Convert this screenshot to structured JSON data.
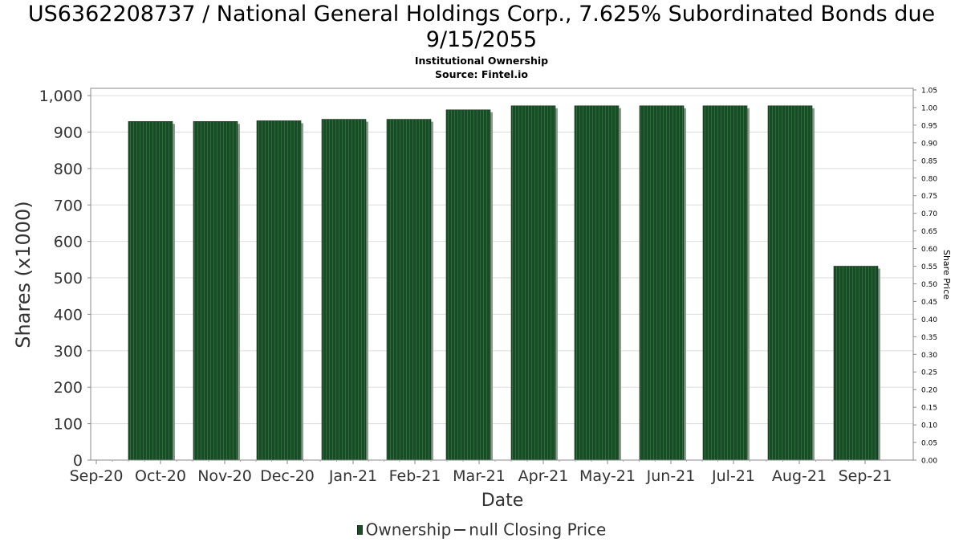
{
  "header": {
    "title_line1": "US6362208737 / National General Holdings Corp., 7.625% Subordinated Bonds due",
    "title_line2": "9/15/2055",
    "subtitle1": "Institutional Ownership",
    "subtitle2": "Source: Fintel.io"
  },
  "legend": {
    "ownership": "Ownership",
    "price": "null Closing Price"
  },
  "colors": {
    "bar": "#1a4a27",
    "bar_stripe": "#2f6b3c",
    "bar_shadow": "#8a9a8c",
    "grid": "#dddddd"
  },
  "chart_data": {
    "type": "bar",
    "xlabel": "Date",
    "ylabel": "Shares (x1000)",
    "y2label": "Share Price",
    "categories": [
      "Oct-20",
      "Nov-20",
      "Dec-20",
      "Jan-21",
      "Feb-21",
      "Mar-21",
      "Apr-21",
      "May-21",
      "Jun-21",
      "Jul-21",
      "Aug-21",
      "Sep-21"
    ],
    "x_ticks": [
      "Sep-20",
      "Oct-20",
      "Nov-20",
      "Dec-20",
      "Jan-21",
      "Feb-21",
      "Mar-21",
      "Apr-21",
      "May-21",
      "Jun-21",
      "Jul-21",
      "Aug-21",
      "Sep-21"
    ],
    "series": [
      {
        "name": "Ownership",
        "values": [
          929,
          929,
          931,
          935,
          935,
          961,
          972,
          972,
          972,
          972,
          972,
          532
        ]
      }
    ],
    "ylim": [
      0,
      1020
    ],
    "y_ticks": [
      "0",
      "100",
      "200",
      "300",
      "400",
      "500",
      "600",
      "700",
      "800",
      "900",
      "1,000"
    ],
    "y2lim": [
      0,
      1.05
    ],
    "y2_ticks": [
      "0.00",
      "0.05",
      "0.10",
      "0.15",
      "0.20",
      "0.25",
      "0.30",
      "0.35",
      "0.40",
      "0.45",
      "0.50",
      "0.55",
      "0.60",
      "0.65",
      "0.70",
      "0.75",
      "0.80",
      "0.85",
      "0.90",
      "0.95",
      "1.00",
      "1.05"
    ],
    "grid": true,
    "legend_position": "bottom"
  }
}
